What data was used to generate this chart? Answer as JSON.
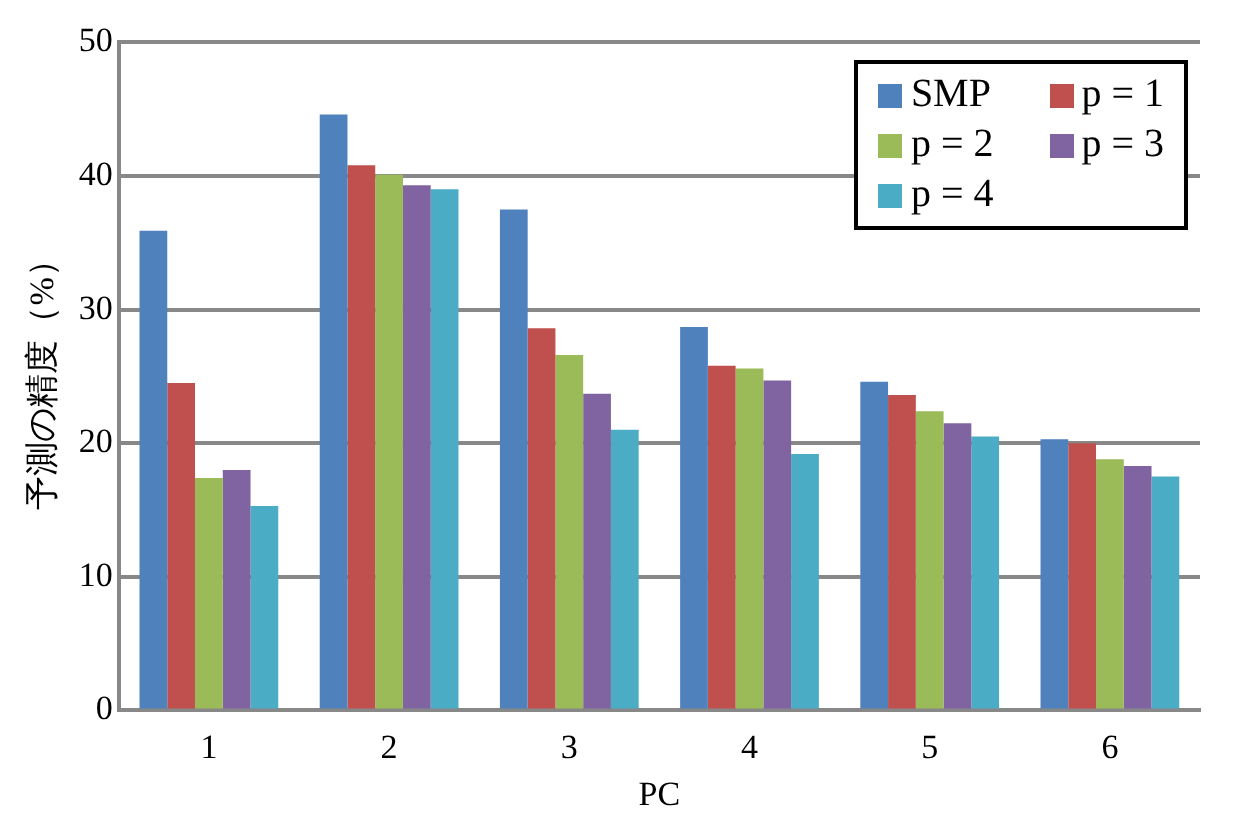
{
  "chart_data": {
    "type": "bar",
    "xlabel": "PC",
    "ylabel": "予測の精度（%）",
    "categories": [
      "1",
      "2",
      "3",
      "4",
      "5",
      "6"
    ],
    "series": [
      {
        "name": "SMP",
        "color": "#4f81bd",
        "values": [
          35.9,
          44.6,
          37.5,
          28.7,
          24.6,
          20.3
        ]
      },
      {
        "name": "p = 1",
        "color": "#c0504d",
        "values": [
          24.5,
          40.8,
          28.6,
          25.8,
          23.6,
          20.0
        ]
      },
      {
        "name": "p = 2",
        "color": "#9bbb59",
        "values": [
          17.4,
          40.1,
          26.6,
          25.6,
          22.4,
          18.8
        ]
      },
      {
        "name": "p = 3",
        "color": "#8064a2",
        "values": [
          18.0,
          39.3,
          23.7,
          24.7,
          21.5,
          18.3
        ]
      },
      {
        "name": "p = 4",
        "color": "#4bacc6",
        "values": [
          15.3,
          39.0,
          21.0,
          19.2,
          20.5,
          17.5
        ]
      }
    ],
    "ylim": [
      0,
      50
    ],
    "yticks": [
      0,
      10,
      20,
      30,
      40,
      50
    ],
    "grid": "y",
    "legend": "top right"
  }
}
